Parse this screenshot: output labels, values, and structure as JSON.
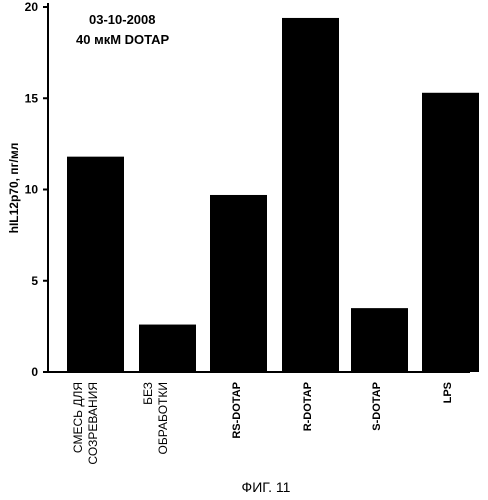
{
  "chart_data": {
    "type": "bar",
    "categories": [
      [
        "СМЕСЬ ДЛЯ",
        "СОЗРЕВАНИЯ"
      ],
      [
        "БЕЗ",
        "ОБРАБОТКИ"
      ],
      [
        "RS-DOTAP"
      ],
      [
        "R-DOTAP"
      ],
      [
        "S-DOTAP"
      ],
      [
        "LPS"
      ]
    ],
    "values": [
      11.8,
      2.6,
      9.7,
      19.4,
      3.5,
      15.3
    ],
    "ylabel": "hIL12p70, пг/мл",
    "ylim": [
      0,
      20
    ],
    "yticks": [
      0,
      5,
      10,
      15,
      20
    ],
    "annotation_lines": [
      "03-10-2008",
      "40 мкМ DOTAP"
    ],
    "caption": "ФИГ. 11",
    "bar_color": "#000000",
    "grid": false
  }
}
